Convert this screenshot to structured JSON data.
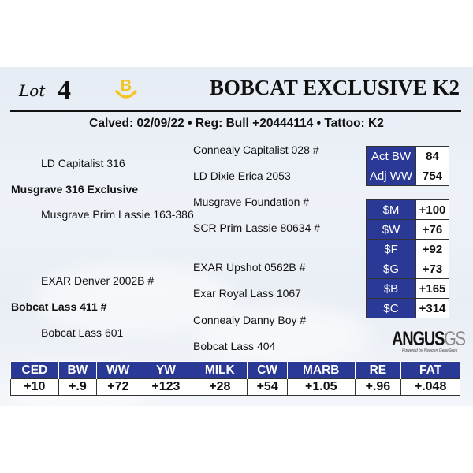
{
  "header": {
    "lot_label": "Lot",
    "lot_number": "4",
    "logo_letter": "B",
    "title": "BOBCAT EXCLUSIVE K2"
  },
  "info_line": "Calved: 02/09/22 • Reg: Bull +20444114 • Tattoo: K2",
  "pedigree": {
    "sire": "Musgrave 316 Exclusive",
    "sire_sire": "LD Capitalist 316",
    "sire_sire_sire": "Connealy Capitalist 028 #",
    "sire_sire_dam": "LD Dixie Erica 2053",
    "sire_dam": "Musgrave Prim Lassie 163-386",
    "sire_dam_sire": "Musgrave Foundation #",
    "sire_dam_dam": "SCR Prim Lassie 80634 #",
    "dam": "Bobcat Lass 411 #",
    "dam_sire": "EXAR Denver 2002B #",
    "dam_sire_sire": "EXAR Upshot 0562B #",
    "dam_sire_dam": "Exar Royal Lass 1067",
    "dam_dam": "Bobcat Lass 601",
    "dam_dam_sire": "Connealy Danny Boy #",
    "dam_dam_dam": "Bobcat Lass 404"
  },
  "weights": [
    {
      "label": "Act BW",
      "value": "84"
    },
    {
      "label": "Adj WW",
      "value": "754"
    }
  ],
  "indexes": [
    {
      "label": "$M",
      "value": "+100"
    },
    {
      "label": "$W",
      "value": "+76"
    },
    {
      "label": "$F",
      "value": "+92"
    },
    {
      "label": "$G",
      "value": "+73"
    },
    {
      "label": "$B",
      "value": "+165"
    },
    {
      "label": "$C",
      "value": "+314"
    }
  ],
  "brand": {
    "angus": "ANGUS",
    "gs": "GS",
    "powered": "Powered by Neogen GeneSeek"
  },
  "epd": {
    "headers": [
      "CED",
      "BW",
      "WW",
      "YW",
      "MILK",
      "CW",
      "MARB",
      "RE",
      "FAT"
    ],
    "values": [
      "+10",
      "+.9",
      "+72",
      "+123",
      "+28",
      "+54",
      "+1.05",
      "+.96",
      "+.048"
    ]
  },
  "colors": {
    "table_blue": "#2b3996",
    "logo_gold": "#f2c522"
  }
}
